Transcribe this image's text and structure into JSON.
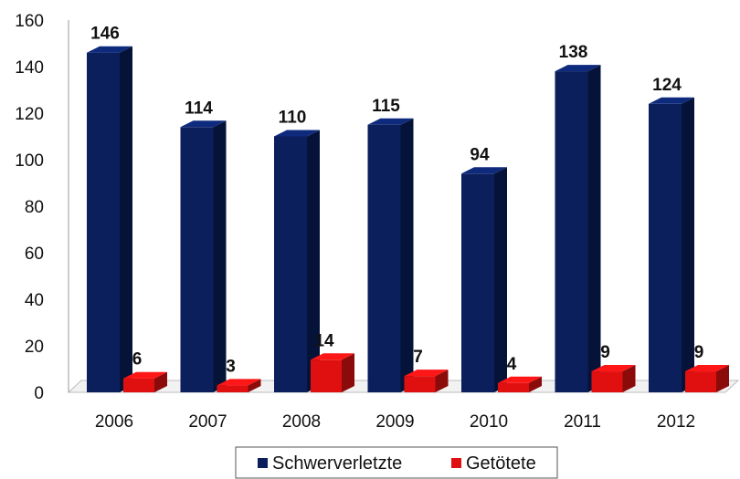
{
  "chart_data": {
    "type": "bar",
    "categories": [
      "2006",
      "2007",
      "2008",
      "2009",
      "2010",
      "2011",
      "2012"
    ],
    "series": [
      {
        "name": "Schwerverletzte",
        "color": "#0a1f5c",
        "values": [
          146,
          114,
          110,
          115,
          94,
          138,
          124
        ]
      },
      {
        "name": "Getötete",
        "color": "#e01010",
        "values": [
          6,
          3,
          14,
          7,
          4,
          9,
          9
        ]
      }
    ],
    "ylim": [
      0,
      160
    ],
    "yticks": [
      "0",
      "20",
      "40",
      "60",
      "80",
      "100",
      "120",
      "140",
      "160"
    ],
    "grid": false,
    "legend_position": "bottom",
    "style": "3d-bars"
  }
}
